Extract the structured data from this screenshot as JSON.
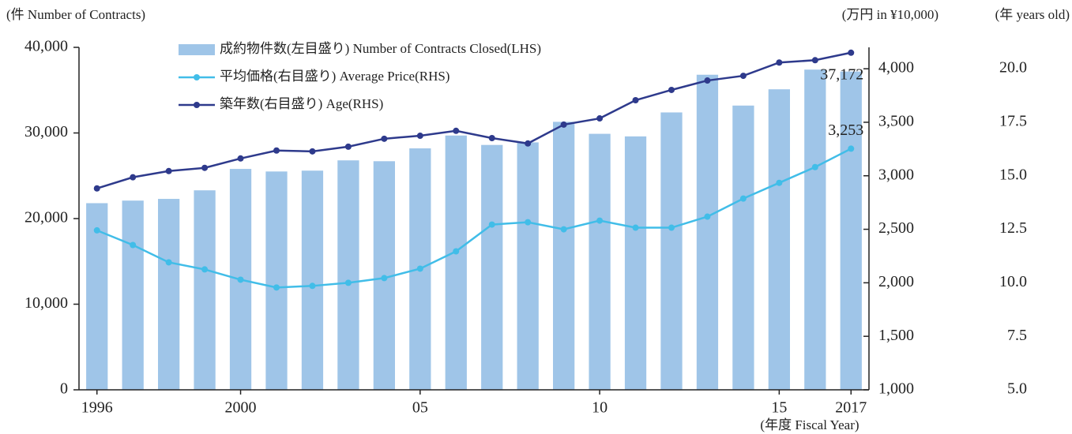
{
  "chart_data": {
    "type": "bar-line",
    "y_label": "(件 Number of Contracts)",
    "y2_label": "(万円 in ¥10,000)",
    "y3_label": "(年 years old)",
    "x_label": "(年度 Fiscal Year)",
    "categories": [
      "1996",
      null,
      null,
      null,
      "2000",
      null,
      null,
      null,
      null,
      "05",
      null,
      null,
      null,
      null,
      "10",
      null,
      null,
      null,
      null,
      "15",
      null,
      "2017"
    ],
    "series": [
      {
        "name": "成約物件数(左目盛り) Number of Contracts Closed(LHS)",
        "type": "bar",
        "axis": "y",
        "color": "#9fc5e8",
        "values": [
          21800,
          22100,
          22300,
          23300,
          25800,
          25500,
          25600,
          26800,
          26700,
          28200,
          29700,
          28600,
          28900,
          31300,
          29900,
          29600,
          32400,
          36800,
          33200,
          35100,
          37400,
          37172
        ],
        "value_labels": [
          null,
          null,
          null,
          null,
          null,
          null,
          null,
          null,
          null,
          null,
          null,
          null,
          null,
          null,
          null,
          null,
          null,
          null,
          null,
          null,
          null,
          "37,172"
        ]
      },
      {
        "name": "平均価格(右目盛り) Average Price(RHS)",
        "type": "line",
        "axis": "y2",
        "color": "#41bde8",
        "values": [
          2490,
          2353,
          2191,
          2125,
          2029,
          1956,
          1971,
          2000,
          2044,
          2132,
          2294,
          2544,
          2566,
          2500,
          2581,
          2515,
          2515,
          2618,
          2787,
          2934,
          3081,
          3253
        ],
        "value_labels": [
          null,
          null,
          null,
          null,
          null,
          null,
          null,
          null,
          null,
          null,
          null,
          null,
          null,
          null,
          null,
          null,
          null,
          null,
          null,
          null,
          null,
          "3,253"
        ]
      },
      {
        "name": "築年数(右目盛り) Age(RHS)",
        "type": "line",
        "axis": "y3",
        "color": "#2e3a8c",
        "values": [
          14.41,
          14.93,
          15.22,
          15.37,
          15.81,
          16.18,
          16.14,
          16.36,
          16.73,
          16.87,
          17.1,
          16.76,
          16.51,
          17.39,
          17.68,
          18.53,
          19.01,
          19.45,
          19.67,
          20.29,
          20.4,
          20.75
        ]
      }
    ],
    "ylim": [
      0,
      40000
    ],
    "yticks": [
      0,
      {
        "value": 10000,
        "label": "10,000"
      },
      {
        "value": 20000,
        "label": "20,000"
      },
      {
        "value": 30000,
        "label": "30,000"
      },
      {
        "value": 40000,
        "label": "40,000"
      }
    ],
    "y2lim": [
      1000,
      4200
    ],
    "y2ticks": [
      {
        "value": 1000,
        "label": "1,000"
      },
      {
        "value": 1500,
        "label": "1,500"
      },
      {
        "value": 2000,
        "label": "2,000"
      },
      {
        "value": 2500,
        "label": "2,500"
      },
      {
        "value": 3000,
        "label": "3,000"
      },
      {
        "value": 3500,
        "label": "3,500"
      },
      {
        "value": 4000,
        "label": "4,000"
      }
    ],
    "y3lim": [
      5,
      21
    ],
    "y3ticks": [
      {
        "value": 5,
        "label": "5.0"
      },
      {
        "value": 7.5,
        "label": "7.5"
      },
      {
        "value": 10,
        "label": "10.0"
      },
      {
        "value": 12.5,
        "label": "12.5"
      },
      {
        "value": 15,
        "label": "15.0"
      },
      {
        "value": 17.5,
        "label": "17.5"
      },
      {
        "value": 20,
        "label": "20.0"
      }
    ],
    "grid": false
  }
}
